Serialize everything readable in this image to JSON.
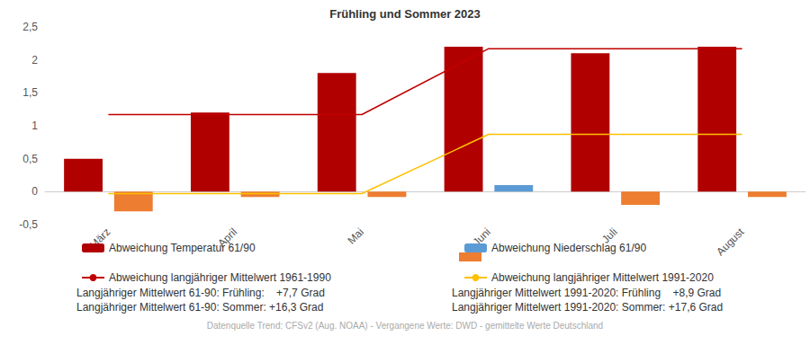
{
  "chart_data": {
    "type": "bar",
    "title": "Frühling und Sommer 2023",
    "categories": [
      "März",
      "April",
      "Mai",
      "Juni",
      "Juli",
      "August"
    ],
    "series": [
      {
        "name": "Abweichung Temperatur 61/90",
        "type": "bar",
        "color": "#b00000",
        "values": [
          0.5,
          1.2,
          1.8,
          2.2,
          2.1,
          2.2
        ]
      },
      {
        "name": "Abweichung Niederschlag 61/90",
        "type": "bar",
        "colors": [
          "#ed7d31",
          "#ed7d31",
          "#ed7d31",
          "#5b9bd5",
          "#ed7d31",
          "#ed7d31"
        ],
        "values": [
          -0.3,
          -0.08,
          -0.08,
          0.1,
          -0.2,
          -0.08
        ]
      },
      {
        "name": "Abweichung langjähriger Mittelwert 1961-1990",
        "type": "line",
        "color": "#c00000",
        "values": [
          1.17,
          1.17,
          1.17,
          2.17,
          2.17,
          2.17
        ]
      },
      {
        "name": "Abweichung langjähriger Mittelwert 1991-2020",
        "type": "line",
        "color": "#ffc000",
        "values": [
          -0.03,
          -0.03,
          -0.03,
          0.87,
          0.87,
          0.87
        ]
      }
    ],
    "ylim": [
      -0.5,
      2.5
    ],
    "yticks": [
      {
        "value": -0.5,
        "label": "-0,5"
      },
      0,
      {
        "value": 0.5,
        "label": "0,5"
      },
      1,
      {
        "value": 1.5,
        "label": "1,5"
      },
      2,
      {
        "value": 2.5,
        "label": "2,5"
      }
    ],
    "grid": false,
    "annotations": [
      "Langjähriger Mittelwert 61-90: Frühling:    +7,7 Grad",
      "Langjähriger Mittelwert 61-90: Sommer: +16,3 Grad",
      "Langjähriger Mittelwert 1991-2020: Frühling    +8,9 Grad",
      "Langjähriger Mittelwert 1991-2020: Sommer: +17,6 Grad"
    ],
    "source": "Datenquelle Trend: CFSv2 (Aug. NOAA) - Vergangene Werte: DWD - gemittelte Werte Deutschland"
  }
}
